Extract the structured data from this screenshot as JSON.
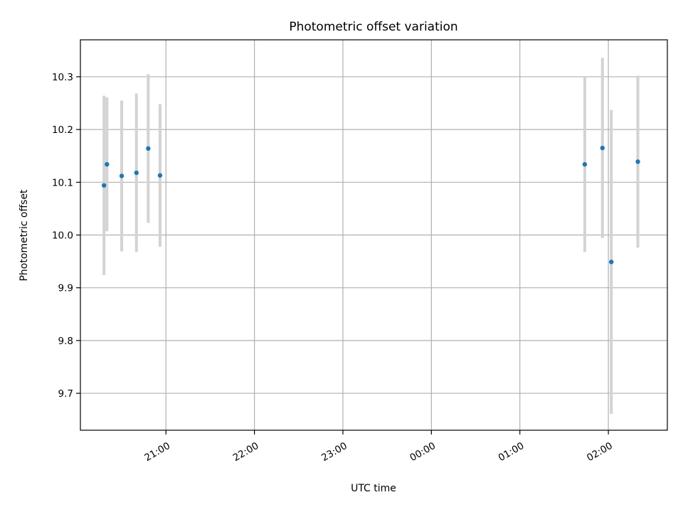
{
  "chart_data": {
    "type": "scatter",
    "title": "Photometric offset variation",
    "xlabel": "UTC time",
    "ylabel": "Photometric offset",
    "x_axis": {
      "unit": "UTC time of night",
      "range": [
        "20:02",
        "02:40"
      ],
      "ticks": [
        "21:00",
        "22:00",
        "23:00",
        "00:00",
        "01:00",
        "02:00"
      ]
    },
    "y_axis": {
      "range": [
        9.63,
        10.37
      ],
      "ticks": [
        "9.7",
        "9.8",
        "9.9",
        "10.0",
        "10.1",
        "10.2",
        "10.3"
      ]
    },
    "grid": true,
    "colors": {
      "point": "#1f77b4",
      "errorbar": "#d3d3d3",
      "grid": "#b0b0b0"
    },
    "points": [
      {
        "x": "20:18",
        "y": 10.094,
        "err": 0.17
      },
      {
        "x": "20:20",
        "y": 10.134,
        "err": 0.127
      },
      {
        "x": "20:30",
        "y": 10.112,
        "err": 0.143
      },
      {
        "x": "20:40",
        "y": 10.118,
        "err": 0.15
      },
      {
        "x": "20:48",
        "y": 10.164,
        "err": 0.141
      },
      {
        "x": "20:56",
        "y": 10.113,
        "err": 0.135
      },
      {
        "x": "01:44",
        "y": 10.134,
        "err": 0.166
      },
      {
        "x": "01:56",
        "y": 10.165,
        "err": 0.171
      },
      {
        "x": "02:02",
        "y": 9.949,
        "err": 0.288
      },
      {
        "x": "02:20",
        "y": 10.139,
        "err": 0.163
      }
    ]
  }
}
